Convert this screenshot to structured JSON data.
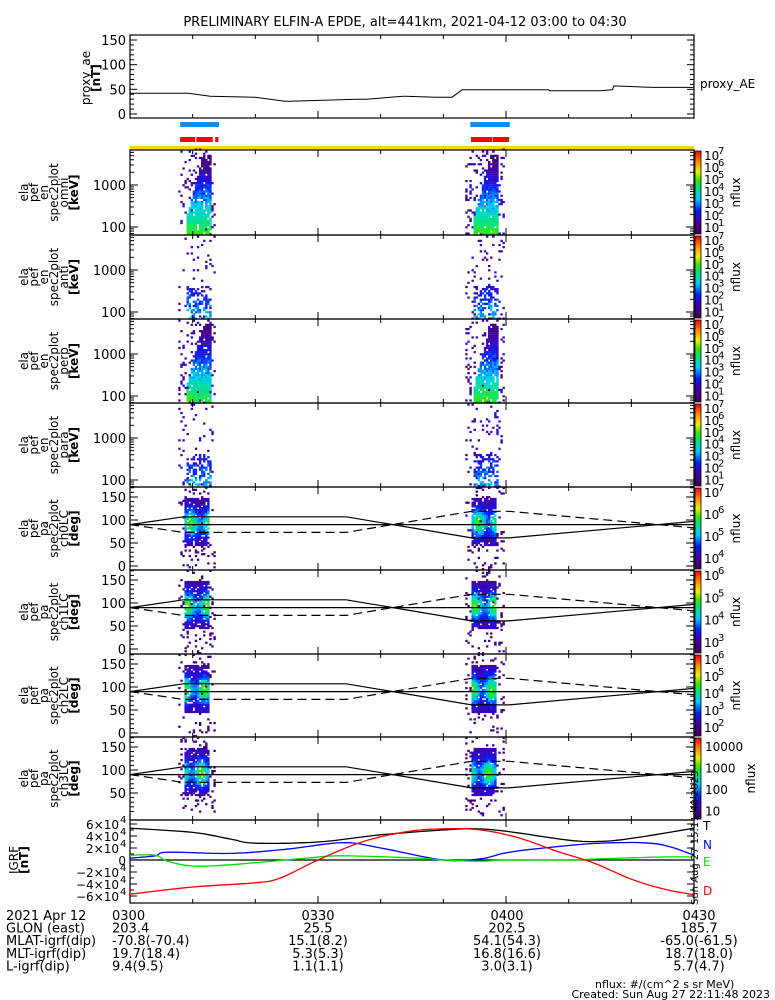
{
  "title": "PRELIMINARY ELFIN-A EPDE, alt=441km, 2021-04-12 03:00 to 04:30",
  "time_axis": {
    "range_min": [
      0,
      90
    ],
    "major_ticks_min": [
      0,
      30,
      60,
      90
    ],
    "minor_step_min": 10
  },
  "colors": {
    "blue_bar": "#0a8cf0",
    "red_bar": "#ff0000",
    "yellow_bar": "#ffd700",
    "T": "#000000",
    "N": "#0000ff",
    "E": "#00dd00",
    "D": "#ff0000"
  },
  "proxy_ae": {
    "ylabel": [
      "proxy_ae",
      "[nT]"
    ],
    "legend": "proxy_AE",
    "yticks": [
      {
        "v": 150,
        "label": "150"
      },
      {
        "v": 100,
        "label": "100"
      },
      {
        "v": 50,
        "label": "50"
      },
      {
        "v": 0,
        "label": "0"
      }
    ],
    "series": {
      "t": [
        0,
        9.3,
        12.8,
        20,
        24.7,
        25.5,
        36.2,
        37.8,
        43.6,
        44,
        48.8,
        51.4,
        53,
        66.8,
        67,
        75,
        77,
        77.2,
        83.4,
        90
      ],
      "v": [
        42,
        42,
        36,
        34,
        26,
        26,
        30,
        30,
        36,
        36,
        34,
        34,
        49,
        49,
        47,
        47,
        49,
        57,
        54,
        54
      ]
    }
  },
  "bars": {
    "blue": [
      [
        8.0,
        14.2
      ],
      [
        54.3,
        60.6
      ]
    ],
    "red": [
      [
        8.0,
        10.4
      ],
      [
        10.6,
        13.2
      ],
      [
        13.6,
        14.1
      ],
      [
        54.4,
        57.8
      ],
      [
        57.9,
        60.5
      ]
    ],
    "yellow": [
      [
        0,
        90
      ]
    ]
  },
  "spectra": [
    {
      "id": "omni",
      "type": "energy",
      "ylabel": [
        "ela",
        "pef",
        "en",
        "spec2plot",
        "omni",
        "[keV]"
      ],
      "yticks": [
        "1000",
        "100"
      ],
      "cbar": [
        "7",
        "6",
        "5",
        "4",
        "3",
        "2",
        "1"
      ],
      "cbar_title": "nflux",
      "dense": true
    },
    {
      "id": "anti",
      "type": "energy",
      "ylabel": [
        "ela",
        "pef",
        "en",
        "spec2plot",
        "anti",
        "[keV]"
      ],
      "yticks": [
        "1000",
        "100"
      ],
      "cbar": [
        "7",
        "6",
        "5",
        "4",
        "3",
        "2",
        "1"
      ],
      "cbar_title": "nflux",
      "dense": false
    },
    {
      "id": "perp",
      "type": "energy",
      "ylabel": [
        "ela",
        "pef",
        "en",
        "spec2plot",
        "perp",
        "[keV]"
      ],
      "yticks": [
        "1000",
        "100"
      ],
      "cbar": [
        "7",
        "6",
        "5",
        "4",
        "3",
        "2",
        "1"
      ],
      "cbar_title": "nflux",
      "dense": true
    },
    {
      "id": "para",
      "type": "energy",
      "ylabel": [
        "ela",
        "pef",
        "en",
        "spec2plot",
        "para",
        "[keV]"
      ],
      "yticks": [
        "1000",
        "100"
      ],
      "cbar": [
        "7",
        "6",
        "5",
        "4",
        "3",
        "2",
        "1"
      ],
      "cbar_title": "nflux",
      "dense": false
    },
    {
      "id": "ch0LC",
      "type": "pa",
      "ylabel": [
        "ela",
        "pef",
        "pa",
        "spec2plot",
        "ch0LC",
        "[deg]"
      ],
      "yticks": [
        "150",
        "100",
        "50",
        "0"
      ],
      "cbar": [
        "7",
        "6",
        "5",
        "4"
      ],
      "cbar_title": "nflux"
    },
    {
      "id": "ch1LC",
      "type": "pa",
      "ylabel": [
        "ela",
        "pef",
        "pa",
        "spec2plot",
        "ch1LC",
        "[deg]"
      ],
      "yticks": [
        "150",
        "100",
        "50",
        "0"
      ],
      "cbar": [
        "6",
        "5",
        "4",
        "3"
      ],
      "cbar_title": "nflux"
    },
    {
      "id": "ch2LC",
      "type": "pa",
      "ylabel": [
        "ela",
        "pef",
        "pa",
        "spec2plot",
        "ch2LC",
        "[deg]"
      ],
      "yticks": [
        "150",
        "100",
        "50",
        "0"
      ],
      "cbar": [
        "6",
        "5",
        "4",
        "3",
        "2"
      ],
      "cbar_title": "nflux"
    },
    {
      "id": "ch3LC",
      "type": "pa",
      "ylabel": [
        "ela",
        "pef",
        "pa",
        "spec2plot",
        "ch3LC",
        "[deg]"
      ],
      "yticks": [
        "150",
        "100",
        "50"
      ],
      "cbar_plain": [
        "10000",
        "1000",
        "100",
        "10"
      ],
      "cbar_title": "nflux"
    }
  ],
  "loss_cone": {
    "t": [
      0,
      8.5,
      34.5,
      54.5,
      60.5,
      90
    ],
    "deg": [
      90,
      107,
      107,
      61,
      61,
      97
    ]
  },
  "igrf": {
    "ylabel": [
      "IGRF",
      "[nT]"
    ],
    "yticks": [
      {
        "v": 60000,
        "label": "6×10",
        "exp": "4"
      },
      {
        "v": 40000,
        "label": "4×10",
        "exp": "4"
      },
      {
        "v": 20000,
        "label": "2×10",
        "exp": "4"
      },
      {
        "v": 0,
        "label": "0",
        "exp": ""
      },
      {
        "v": -20000,
        "label": "−2×10",
        "exp": "4"
      },
      {
        "v": -40000,
        "label": "−4×10",
        "exp": "4"
      },
      {
        "v": -60000,
        "label": "−6×10",
        "exp": "4"
      }
    ],
    "series": [
      {
        "name": "T",
        "t": [
          0,
          10,
          16,
          20,
          30,
          40,
          50,
          55,
          60,
          70,
          75,
          80,
          90
        ],
        "v": [
          53000,
          46000,
          35000,
          28000,
          30000,
          42000,
          50000,
          52000,
          48000,
          33000,
          31000,
          36000,
          53000
        ]
      },
      {
        "name": "N",
        "t": [
          0,
          4,
          6,
          16,
          25,
          34,
          40,
          50,
          56,
          60,
          66,
          75,
          84,
          90
        ],
        "v": [
          3000,
          7000,
          13000,
          11000,
          18000,
          29000,
          20000,
          0,
          2000,
          12000,
          20000,
          28000,
          27000,
          8000
        ]
      },
      {
        "name": "E",
        "t": [
          0,
          4,
          6,
          10,
          16,
          28,
          34,
          46,
          50,
          56,
          60,
          70,
          75,
          85,
          90
        ],
        "v": [
          8000,
          8000,
          -2000,
          -10000,
          -8000,
          3000,
          7000,
          3000,
          0,
          -2000,
          0,
          0,
          2000,
          5000,
          5000
        ]
      },
      {
        "name": "D",
        "t": [
          0,
          10,
          20,
          24,
          30,
          37,
          44,
          50,
          56,
          62,
          68,
          74,
          80,
          85,
          90
        ],
        "v": [
          -57000,
          -45000,
          -38000,
          -30000,
          0,
          30000,
          47000,
          52000,
          50000,
          37000,
          15000,
          -5000,
          -32000,
          -48000,
          -58000
        ]
      }
    ],
    "side_stamp": "Sun Aug 27 15:11:40 2023"
  },
  "footer": {
    "rows": [
      {
        "label": "2021 Apr 12",
        "values": [
          "0300",
          "0330",
          "0400",
          "0430"
        ]
      },
      {
        "label": "GLON (east)",
        "values": [
          "203.4",
          "25.5",
          "202.5",
          "185.7"
        ]
      },
      {
        "label": "MLAT-igrf(dip)",
        "values": [
          "-70.8(-70.4)",
          "15.1(8.2)",
          "54.1(54.3)",
          "-65.0(-61.5)"
        ]
      },
      {
        "label": "MLT-igrf(dip)",
        "values": [
          "19.7(18.4)",
          "5.3(5.3)",
          "16.8(16.6)",
          "18.7(18.0)"
        ]
      },
      {
        "label": "L-igrf(dip)",
        "values": [
          "9.4(9.5)",
          "1.1(1.1)",
          "3.0(3.1)",
          "5.7(4.7)"
        ]
      }
    ],
    "units_note": "nflux: #/(cm^2 s sr MeV)",
    "created": "Created: Sun Aug 27 22:11:48 2023"
  }
}
